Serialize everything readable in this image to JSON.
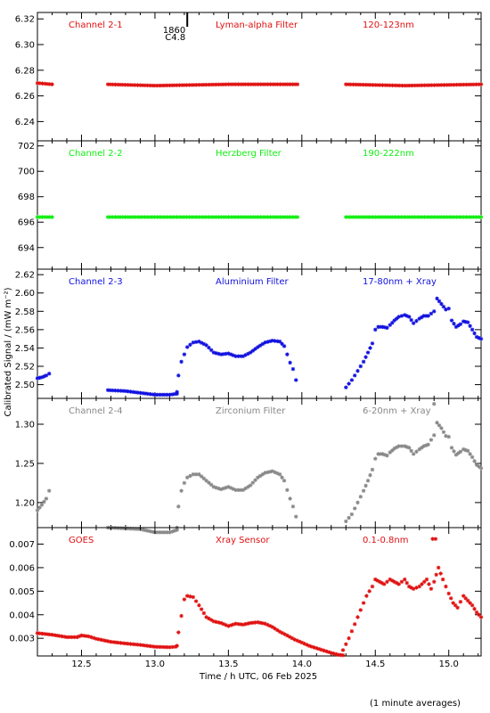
{
  "xaxis": {
    "label": "Time / h UTC, 06 Feb 2025",
    "range": [
      12.2,
      15.22
    ],
    "ticks": [
      12.5,
      13.0,
      13.5,
      14.0,
      14.5,
      15.0
    ],
    "tick_labels": [
      "12.5",
      "13.0",
      "13.5",
      "14.0",
      "14.5",
      "15.0"
    ],
    "minor_step": 0.1
  },
  "ylabel": "Calibrated Signal / (mW m⁻²)",
  "footnote": "(1 minute averages)",
  "event_marker": {
    "x": 13.22,
    "labels": [
      "1860",
      "C4.8"
    ]
  },
  "chart_data": [
    {
      "type": "scatter",
      "color": "#e01010",
      "labels": [
        "Channel 2-1",
        "Lyman-alpha Filter",
        "120-123nm"
      ],
      "ylim": [
        6.225,
        6.325
      ],
      "yticks": [
        6.24,
        6.26,
        6.28,
        6.3,
        6.32
      ],
      "ytick_labels": [
        "6.24",
        "6.26",
        "6.28",
        "6.30",
        "6.32"
      ],
      "segments": [
        {
          "x": [
            12.2,
            12.3
          ],
          "y": [
            6.27,
            6.269
          ]
        },
        {
          "x": [
            12.68,
            13.0,
            13.5,
            13.97
          ],
          "y": [
            6.269,
            6.268,
            6.269,
            6.269
          ]
        },
        {
          "x": [
            14.3,
            14.7,
            15.22
          ],
          "y": [
            6.269,
            6.268,
            6.269
          ]
        }
      ]
    },
    {
      "type": "scatter",
      "color": "#11ee11",
      "labels": [
        "Channel 2-2",
        "Herzberg Filter",
        "190-222nm"
      ],
      "ylim": [
        692.3,
        702.4
      ],
      "yticks": [
        694,
        696,
        698,
        700,
        702
      ],
      "ytick_labels": [
        "694",
        "696",
        "698",
        "700",
        "702"
      ],
      "segments": [
        {
          "x": [
            12.2,
            12.3
          ],
          "y": [
            696.4,
            696.4
          ]
        },
        {
          "x": [
            12.68,
            13.97
          ],
          "y": [
            696.4,
            696.4
          ]
        },
        {
          "x": [
            14.3,
            15.22
          ],
          "y": [
            696.4,
            696.4
          ]
        }
      ]
    },
    {
      "type": "scatter",
      "color": "#1010e0",
      "labels": [
        "Channel 2-3",
        "Aluminium Filter",
        "17-80nm + Xray"
      ],
      "ylim": [
        2.485,
        2.626
      ],
      "yticks": [
        2.5,
        2.52,
        2.54,
        2.56,
        2.58,
        2.6,
        2.62
      ],
      "ytick_labels": [
        "2.50",
        "2.52",
        "2.54",
        "2.56",
        "2.58",
        "2.60",
        "2.62"
      ],
      "segments": [
        {
          "x": [
            12.2,
            12.23,
            12.26,
            12.28
          ],
          "y": [
            2.507,
            2.508,
            2.51,
            2.512
          ]
        },
        {
          "x": [
            12.68,
            12.8,
            12.9,
            13.0,
            13.1,
            13.15
          ],
          "y": [
            2.494,
            2.493,
            2.491,
            2.489,
            2.489,
            2.49
          ]
        },
        {
          "x": [
            13.15,
            13.16,
            13.18,
            13.2,
            13.22,
            13.26,
            13.3,
            13.35,
            13.4,
            13.45,
            13.5,
            13.55,
            13.6,
            13.65,
            13.7,
            13.75,
            13.8,
            13.85,
            13.88,
            13.9,
            13.92,
            13.94,
            13.96
          ],
          "y": [
            2.492,
            2.51,
            2.525,
            2.533,
            2.541,
            2.546,
            2.547,
            2.543,
            2.535,
            2.533,
            2.534,
            2.531,
            2.531,
            2.535,
            2.541,
            2.546,
            2.548,
            2.547,
            2.542,
            2.533,
            2.524,
            2.517,
            2.505
          ]
        },
        {
          "x": [
            14.3,
            14.34,
            14.38,
            14.42,
            14.45,
            14.48,
            14.5,
            14.52,
            14.55,
            14.58,
            14.6,
            14.63,
            14.66,
            14.7,
            14.73,
            14.76,
            14.8,
            14.83,
            14.86,
            14.9,
            14.92,
            14.95,
            14.98,
            15.0,
            15.02,
            15.05,
            15.08,
            15.1,
            15.13,
            15.16,
            15.19,
            15.22
          ],
          "y": [
            2.497,
            2.505,
            2.515,
            2.525,
            2.535,
            2.545,
            2.56,
            2.563,
            2.563,
            2.562,
            2.565,
            2.57,
            2.574,
            2.576,
            2.574,
            2.567,
            2.572,
            2.575,
            2.575,
            2.58,
            2.594,
            2.588,
            2.582,
            2.583,
            2.57,
            2.563,
            2.566,
            2.569,
            2.568,
            2.56,
            2.552,
            2.55
          ]
        }
      ]
    },
    {
      "type": "scatter",
      "color": "#888888",
      "labels": [
        "Channel 2-4",
        "Zirconium Filter",
        "6-20nm + Xray"
      ],
      "ylim": [
        1.168,
        1.333
      ],
      "yticks": [
        1.2,
        1.25,
        1.3
      ],
      "ytick_labels": [
        "1.20",
        "1.25",
        "1.30"
      ],
      "segments": [
        {
          "x": [
            12.2,
            12.23,
            12.26,
            12.28
          ],
          "y": [
            1.19,
            1.197,
            1.205,
            1.215
          ]
        },
        {
          "x": [
            12.68,
            12.8,
            12.9,
            13.0,
            13.1,
            13.15
          ],
          "y": [
            1.168,
            1.167,
            1.166,
            1.162,
            1.162,
            1.165
          ]
        },
        {
          "x": [
            13.15,
            13.16,
            13.18,
            13.2,
            13.22,
            13.26,
            13.3,
            13.35,
            13.4,
            13.45,
            13.5,
            13.55,
            13.6,
            13.65,
            13.7,
            13.75,
            13.8,
            13.85,
            13.88,
            13.9,
            13.92,
            13.94,
            13.96
          ],
          "y": [
            1.168,
            1.195,
            1.215,
            1.225,
            1.232,
            1.236,
            1.236,
            1.228,
            1.22,
            1.217,
            1.22,
            1.216,
            1.216,
            1.222,
            1.232,
            1.238,
            1.24,
            1.236,
            1.228,
            1.216,
            1.205,
            1.195,
            1.182
          ]
        },
        {
          "x": [
            14.3,
            14.34,
            14.38,
            14.42,
            14.45,
            14.48,
            14.5,
            14.52,
            14.55,
            14.58,
            14.6,
            14.63,
            14.66,
            14.7,
            14.73,
            14.76,
            14.8,
            14.83,
            14.86,
            14.9,
            14.92,
            14.95,
            14.98,
            15.0,
            15.02,
            15.05,
            15.08,
            15.1,
            15.13,
            15.16,
            15.19,
            15.22
          ],
          "y": [
            1.176,
            1.185,
            1.2,
            1.215,
            1.228,
            1.242,
            1.256,
            1.262,
            1.262,
            1.26,
            1.264,
            1.269,
            1.272,
            1.272,
            1.27,
            1.262,
            1.268,
            1.272,
            1.274,
            1.286,
            1.302,
            1.295,
            1.285,
            1.284,
            1.27,
            1.261,
            1.265,
            1.268,
            1.266,
            1.258,
            1.248,
            1.244
          ]
        }
      ],
      "extra_points": [
        {
          "x": 14.9,
          "y": 1.326
        }
      ]
    },
    {
      "type": "scatter",
      "color": "#e01010",
      "labels": [
        "GOES",
        "Xray Sensor",
        "0.1-0.8nm"
      ],
      "ylim": [
        0.00225,
        0.0077
      ],
      "yticks": [
        0.003,
        0.004,
        0.005,
        0.006,
        0.007
      ],
      "ytick_labels": [
        "0.003",
        "0.004",
        "0.005",
        "0.006",
        "0.007"
      ],
      "segments": [
        {
          "x": [
            12.2,
            12.3,
            12.4,
            12.47,
            12.5,
            12.55,
            12.6,
            12.7,
            12.8,
            12.9,
            13.0,
            13.1,
            13.14
          ],
          "y": [
            0.00322,
            0.00315,
            0.00305,
            0.00305,
            0.00312,
            0.00308,
            0.00298,
            0.00285,
            0.00278,
            0.00272,
            0.00264,
            0.00262,
            0.00264
          ]
        },
        {
          "x": [
            13.15,
            13.16,
            13.18,
            13.2,
            13.22,
            13.26,
            13.3,
            13.35,
            13.4,
            13.45,
            13.5,
            13.55,
            13.6,
            13.65,
            13.7,
            13.75,
            13.8,
            13.85,
            13.9,
            13.95,
            14.0,
            14.05,
            14.1,
            14.15,
            14.2,
            14.25,
            14.28
          ],
          "y": [
            0.00268,
            0.00325,
            0.00395,
            0.00465,
            0.0048,
            0.00475,
            0.0044,
            0.0039,
            0.00372,
            0.00365,
            0.00352,
            0.00362,
            0.00358,
            0.00365,
            0.00368,
            0.00362,
            0.00348,
            0.00328,
            0.00312,
            0.00295,
            0.00282,
            0.00268,
            0.00258,
            0.00248,
            0.00238,
            0.0023,
            0.00228
          ]
        },
        {
          "x": [
            14.28,
            14.32,
            14.36,
            14.4,
            14.44,
            14.48,
            14.5,
            14.53,
            14.56,
            14.6,
            14.63,
            14.66,
            14.7,
            14.73,
            14.76,
            14.8,
            14.85,
            14.88,
            14.9,
            14.93,
            14.96,
            15.0,
            15.03,
            15.06,
            15.1,
            15.13,
            15.16,
            15.19,
            15.22
          ],
          "y": [
            0.0025,
            0.003,
            0.0036,
            0.0042,
            0.0048,
            0.0052,
            0.0055,
            0.0054,
            0.0053,
            0.0055,
            0.0054,
            0.0053,
            0.0055,
            0.0052,
            0.0051,
            0.0052,
            0.0055,
            0.0051,
            0.0054,
            0.006,
            0.0055,
            0.0049,
            0.0045,
            0.0043,
            0.0048,
            0.0046,
            0.0044,
            0.0041,
            0.0039
          ]
        }
      ],
      "extra_points": [
        {
          "x": 14.89,
          "y": 0.00722
        },
        {
          "x": 14.91,
          "y": 0.00722
        }
      ]
    }
  ]
}
